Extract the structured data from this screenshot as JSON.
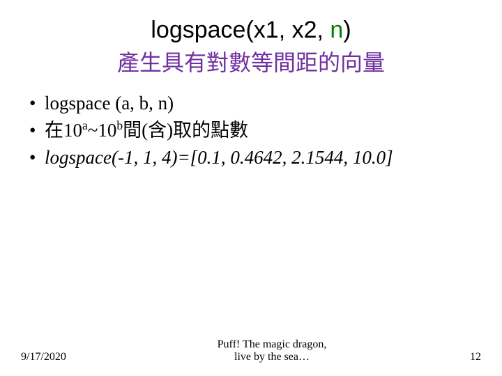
{
  "title": {
    "part1": "logspace(x1, x2, ",
    "n": "n",
    "part2": ")",
    "subtitle": "產生具有對數等間距的向量",
    "color_main": "#000000",
    "color_n": "#008000",
    "color_subtitle": "#7030a0",
    "fontsize_line1": 34,
    "fontsize_line2": 32
  },
  "bullets": [
    {
      "type": "plain",
      "text": "logspace (a, b, n)"
    },
    {
      "type": "superscript",
      "pre": "在10",
      "sup1": "a",
      "mid": "~10",
      "sup2": "b",
      "post": "間(含)取的點數"
    },
    {
      "type": "italic",
      "text": "logspace(-1, 1, 4)=[0.1, 0.4642, 2.1544, 10.0]"
    }
  ],
  "bullet_fontsize": 27,
  "bullet_color": "#000000",
  "footer": {
    "date": "9/17/2020",
    "center_line1": "Puff! The magic dragon,",
    "center_line2": "live by the sea…",
    "page": "12",
    "fontsize": 16
  },
  "background_color": "#ffffff"
}
